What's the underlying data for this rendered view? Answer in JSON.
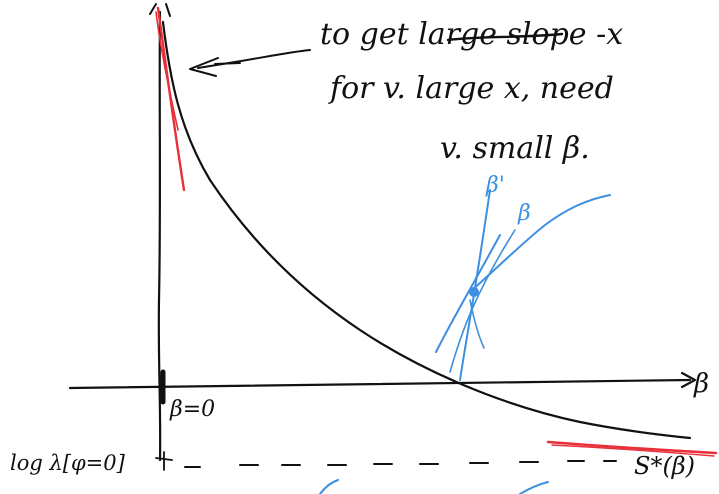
{
  "annotation": {
    "line1": "to get large slope -x",
    "line2": "for v. large x, need",
    "line3": "v. small β."
  },
  "axis": {
    "horizontal_label": "β",
    "origin_label": "β=0",
    "lower_left_label": "log λ[φ=0]",
    "lower_right_label": "S*(β)"
  },
  "blue_sketch": {
    "label_upper": "β'",
    "label_lower": "β"
  },
  "colors": {
    "ink": "#111111",
    "red": "#e8303a",
    "blue": "#3d8fe0"
  }
}
